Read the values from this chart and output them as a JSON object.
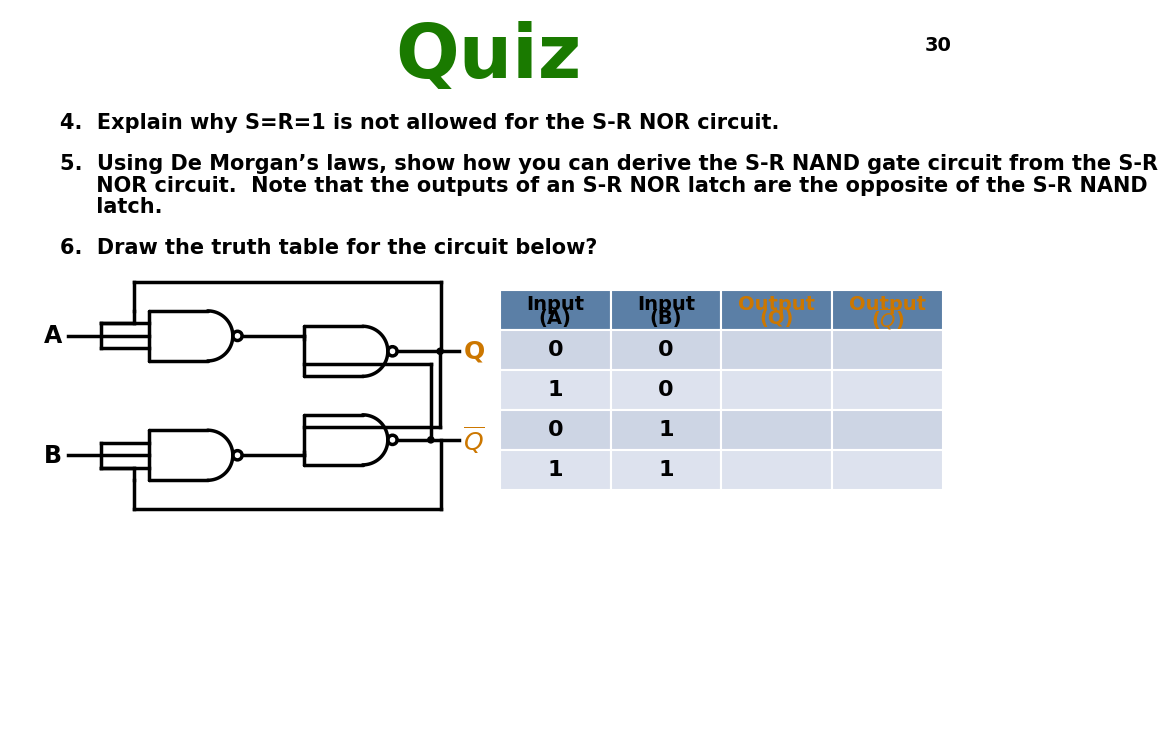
{
  "title": "Quiz",
  "title_color": "#1a7a00",
  "page_number": "30",
  "bg_color": "#ffffff",
  "text_color": "#000000",
  "orange_color": "#cc7700",
  "table_header_bg": "#5b7fa6",
  "table_row_bg1": "#cdd5e4",
  "table_row_bg2": "#dde2ee",
  "q4": "4.  Explain why S=R=1 is not allowed for the S-R NOR circuit.",
  "q5_line1": "5.  Using De Morgan’s laws, show how you can derive the S-R NAND gate circuit from the S-R",
  "q5_line2": "     NOR circuit.  Note that the outputs of an S-R NOR latch are the opposite of the S-R NAND",
  "q5_line3": "     latch.",
  "q6": "6.  Draw the truth table for the circuit below?",
  "table_data": [
    [
      "0",
      "0",
      "",
      ""
    ],
    [
      "1",
      "0",
      "",
      ""
    ],
    [
      "0",
      "1",
      "",
      ""
    ],
    [
      "1",
      "1",
      "",
      ""
    ]
  ]
}
